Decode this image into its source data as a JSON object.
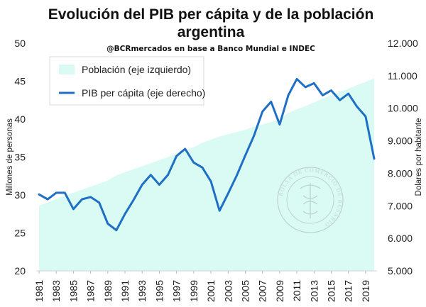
{
  "chart_data": {
    "type": "area+line",
    "title_line1": "Evolución del PIB per cápita y de la población",
    "title_line2": "argentina",
    "subtitle": "@BCRmercados en base a Banco Mundial e INDEC",
    "ylabel_left": "Millones de personas",
    "ylabel_right": "Dolares por habitante",
    "ylim_left": [
      20,
      50
    ],
    "ylim_right": [
      5000,
      12000
    ],
    "yticks_left": [
      "20",
      "25",
      "30",
      "35",
      "40",
      "45",
      "50"
    ],
    "yticks_right": [
      "5.000",
      "6.000",
      "7.000",
      "8.000",
      "9.000",
      "10.000",
      "11.000",
      "12.000"
    ],
    "xticks": [
      "1981",
      "1983",
      "1985",
      "1987",
      "1989",
      "1991",
      "1993",
      "1995",
      "1997",
      "1999",
      "2001",
      "2003",
      "2005",
      "2007",
      "2009",
      "2011",
      "2013",
      "2015",
      "2017",
      "2019"
    ],
    "legend": {
      "position": "top-left",
      "area_label": "Población (eje izquierdo)",
      "line_label": "PIB per cápita (eje derecho)"
    },
    "colors": {
      "area": "#d9fbf3",
      "line": "#1f6fc5"
    },
    "years": [
      1981,
      1982,
      1983,
      1984,
      1985,
      1986,
      1987,
      1988,
      1989,
      1990,
      1991,
      1992,
      1993,
      1994,
      1995,
      1996,
      1997,
      1998,
      1999,
      2000,
      2001,
      2002,
      2003,
      2004,
      2005,
      2006,
      2007,
      2008,
      2009,
      2010,
      2011,
      2012,
      2013,
      2014,
      2015,
      2016,
      2017,
      2018,
      2019,
      2020
    ],
    "series": [
      {
        "name": "Población (eje izquierdo)",
        "axis": "left",
        "values": [
          28.6,
          29.0,
          29.5,
          29.9,
          30.3,
          30.7,
          31.1,
          31.5,
          31.9,
          32.6,
          33.0,
          33.4,
          33.8,
          34.2,
          34.6,
          35.0,
          35.5,
          35.9,
          36.3,
          36.9,
          37.3,
          37.7,
          38.0,
          38.3,
          38.6,
          39.0,
          39.3,
          39.6,
          40.0,
          40.8,
          41.3,
          41.7,
          42.2,
          42.7,
          43.1,
          43.6,
          44.0,
          44.5,
          44.9,
          45.4
        ]
      },
      {
        "name": "PIB per cápita (eje derecho)",
        "axis": "right",
        "values": [
          7350,
          7200,
          7400,
          7400,
          6900,
          7200,
          7270,
          7100,
          6450,
          6250,
          6750,
          7180,
          7650,
          7950,
          7650,
          7950,
          8530,
          8750,
          8330,
          8180,
          7750,
          6850,
          7380,
          7930,
          8550,
          9150,
          9900,
          10200,
          9500,
          10400,
          10900,
          10650,
          10770,
          10400,
          10550,
          10250,
          10450,
          10050,
          9750,
          8450
        ]
      }
    ]
  },
  "watermark": "BOLSA DE COMERCIO DE ROSARIO"
}
